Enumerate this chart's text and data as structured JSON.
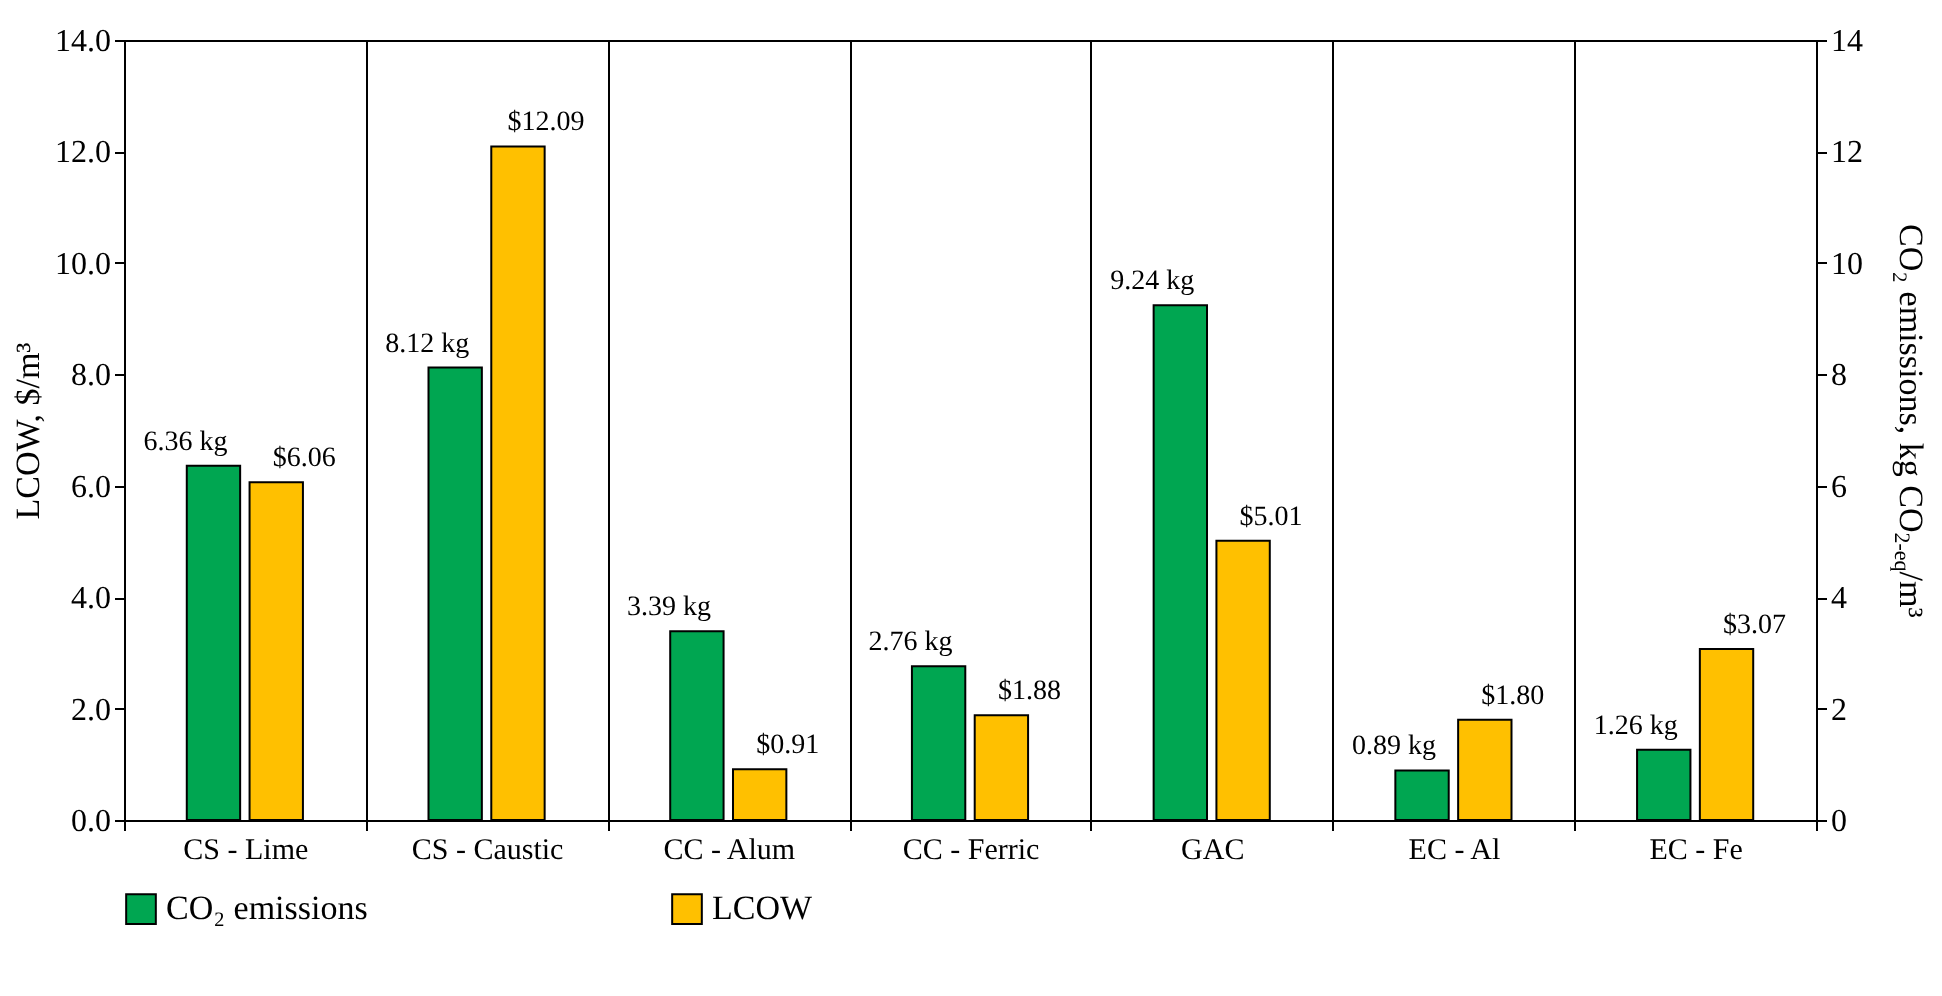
{
  "chart_data": {
    "type": "bar",
    "categories": [
      "CS - Lime",
      "CS - Caustic",
      "CC - Alum",
      "CC - Ferric",
      "GAC",
      "EC - Al",
      "EC - Fe"
    ],
    "series": [
      {
        "name": "CO₂ emissions",
        "color": "#00a651",
        "axis": "y2",
        "values": [
          6.36,
          8.12,
          3.39,
          2.76,
          9.24,
          0.89,
          1.26
        ],
        "value_labels": [
          "6.36 kg",
          "8.12 kg",
          "3.39 kg",
          "2.76 kg",
          "9.24 kg",
          "0.89 kg",
          "1.26 kg"
        ]
      },
      {
        "name": "LCOW",
        "color": "#ffc000",
        "values": [
          6.06,
          12.09,
          0.91,
          1.88,
          5.01,
          1.8,
          3.07
        ],
        "value_labels": [
          "$6.06",
          "$12.09",
          "$0.91",
          "$1.88",
          "$5.01",
          "$1.80",
          "$3.07"
        ]
      }
    ],
    "ylabel": "LCOW, $/m³",
    "y2label": "CO₂ emissions, kg CO$_{2-eq}$/m³",
    "ylim": [
      0,
      14
    ],
    "yticks": [
      {
        "value": 0,
        "label": "0.0"
      },
      {
        "value": 2,
        "label": "2.0"
      },
      {
        "value": 4,
        "label": "4.0"
      },
      {
        "value": 6,
        "label": "6.0"
      },
      {
        "value": 8,
        "label": "8.0"
      },
      {
        "value": 10,
        "label": "10.0"
      },
      {
        "value": 12,
        "label": "12.0"
      },
      {
        "value": 14,
        "label": "14.0"
      }
    ],
    "y2lim": [
      0,
      14
    ],
    "y2ticks": [
      0,
      2,
      4,
      6,
      8,
      10,
      12,
      14
    ],
    "grid": "x",
    "legend": "bottom"
  }
}
